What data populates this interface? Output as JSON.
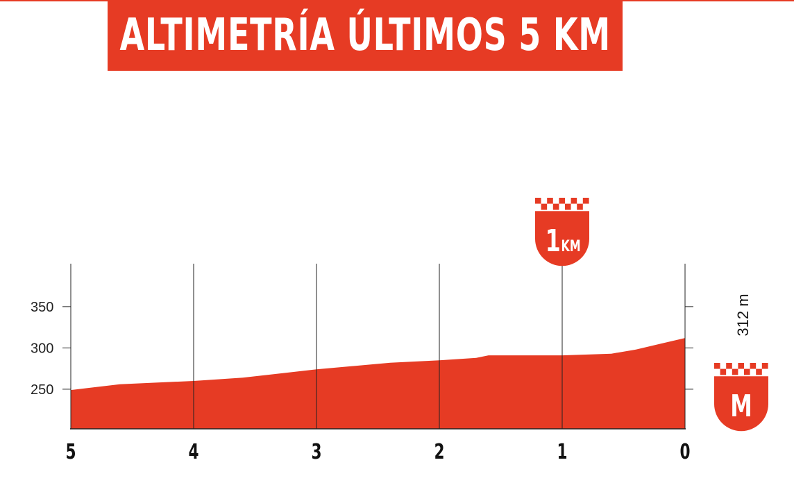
{
  "title": "ALTIMETRÍA ÚLTIMOS 5 KM",
  "colors": {
    "accent": "#e63b24",
    "axis": "#222222",
    "background": "#ffffff"
  },
  "markers": {
    "flamme_rouge": {
      "number": "1",
      "unit": "KM",
      "at_km_to_go": 1
    },
    "finish": {
      "label": "M",
      "altitude_label": "312 m"
    }
  },
  "chart_data": {
    "type": "area",
    "title": "ALTIMETRÍA ÚLTIMOS 5 KM",
    "xlabel": "",
    "ylabel": "",
    "x_ticks": [
      "5",
      "4",
      "3",
      "2",
      "1",
      "0"
    ],
    "y_ticks": [
      "250",
      "300",
      "350"
    ],
    "xlim": [
      5,
      0
    ],
    "ylim": [
      202,
      402
    ],
    "grid": "vertical",
    "series": [
      {
        "x": [
          5,
          4.6,
          4.0,
          3.6,
          3.0,
          2.4,
          2.0,
          1.7,
          1.6,
          1.2,
          1.0,
          0.6,
          0.4,
          0.2,
          0
        ],
        "y": [
          249,
          256,
          260,
          264,
          274,
          282,
          285,
          288,
          291,
          291,
          291,
          293,
          298,
          305,
          312
        ]
      }
    ]
  }
}
